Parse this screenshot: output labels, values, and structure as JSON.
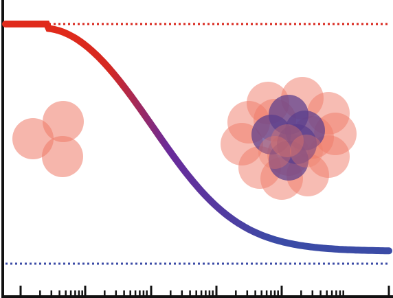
{
  "diagram": {
    "colors": {
      "high": "#e02a1b",
      "low": "#3b4ba6",
      "mid": "#6a2a9a",
      "cluster_light": "#ef7a68",
      "cluster_dark": "#5a3d8c",
      "axis": "#111111"
    },
    "upper_plateau_style": "dotted",
    "lower_plateau_style": "dotted",
    "x_axis_scale": "logarithmic",
    "curve_shape": "sigmoid-decay",
    "small_cluster_particles": 3,
    "large_cluster_outer_particles": 13,
    "large_cluster_core_particles": 5
  }
}
